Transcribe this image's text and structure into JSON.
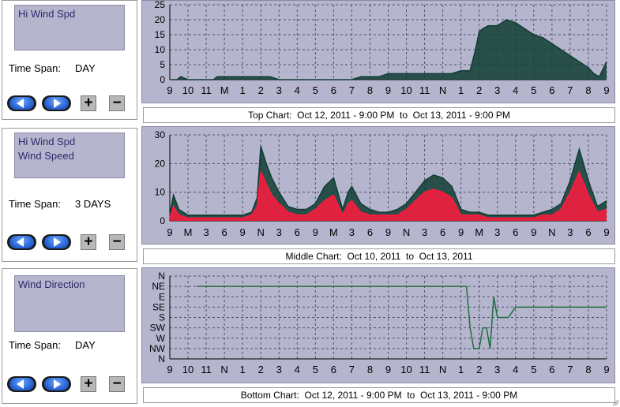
{
  "panels": [
    {
      "series": [
        "Hi Wind Spd"
      ],
      "time_span_label": "Time Span:",
      "time_span_value": "DAY",
      "zoom_in": "+",
      "zoom_out": "−",
      "caption": "Top Chart:  Oct 12, 2011 - 9:00 PM  to  Oct 13, 2011 - 9:00 PM"
    },
    {
      "series": [
        "Hi Wind Spd",
        "Wind Speed"
      ],
      "time_span_label": "Time Span:",
      "time_span_value": "3 DAYS",
      "zoom_in": "+",
      "zoom_out": "−",
      "caption": "Middle Chart:  Oct 10, 2011  to  Oct 13, 2011"
    },
    {
      "series": [
        "Wind Direction"
      ],
      "time_span_label": "Time Span:",
      "time_span_value": "DAY",
      "zoom_in": "+",
      "zoom_out": "−",
      "caption": "Bottom Chart:  Oct 12, 2011 - 9:00 PM  to  Oct 13, 2011 - 9:00 PM"
    }
  ],
  "colors": {
    "plot_bg": "#b6b5ce",
    "grid": "#52526e",
    "hi_wind": "#0f3d33",
    "wind_speed": "#ff1a3d",
    "direction": "#1e6e3c"
  },
  "icons": [
    "arrow-left-icon",
    "arrow-right-icon"
  ],
  "chart_data": [
    {
      "type": "area",
      "title": "",
      "xlabel": "",
      "ylabel": "",
      "ylim": [
        0,
        25
      ],
      "yticks": [
        "0",
        "5",
        "10",
        "15",
        "20",
        "25"
      ],
      "categories": [
        "9",
        "10",
        "11",
        "M",
        "1",
        "2",
        "3",
        "4",
        "5",
        "6",
        "7",
        "8",
        "9",
        "10",
        "11",
        "N",
        "1",
        "2",
        "3",
        "4",
        "5",
        "6",
        "7",
        "8",
        "9"
      ],
      "grid": true,
      "series": [
        {
          "name": "Hi Wind Spd",
          "x": [
            0,
            0.4,
            0.6,
            1,
            1.5,
            2,
            2.4,
            2.6,
            3,
            3.5,
            4,
            4.5,
            5,
            5.5,
            6,
            6.5,
            7,
            7.5,
            8,
            8.5,
            9,
            9.5,
            10,
            10.5,
            11,
            11.5,
            12,
            12.5,
            13,
            13.5,
            14,
            14.5,
            15,
            15.5,
            16,
            16.5,
            16.8,
            17,
            17.2,
            17.5,
            18,
            18.5,
            19,
            19.5,
            20,
            20.5,
            21,
            21.5,
            22,
            22.5,
            23,
            23.3,
            23.6,
            24
          ],
          "values": [
            0,
            0,
            1,
            0,
            0,
            0,
            0,
            1,
            1,
            1,
            1,
            1,
            1,
            1,
            0,
            0,
            0,
            0,
            0,
            0,
            0,
            0,
            0,
            1,
            1,
            1,
            2,
            2,
            2,
            2,
            2,
            2,
            2,
            2,
            3,
            3,
            10,
            16,
            17,
            18,
            18,
            20,
            19,
            17,
            15,
            14,
            12,
            10,
            8,
            6,
            4,
            2,
            1,
            6
          ]
        }
      ]
    },
    {
      "type": "area",
      "title": "",
      "xlabel": "",
      "ylabel": "",
      "ylim": [
        0,
        30
      ],
      "yticks": [
        "0",
        "10",
        "20",
        "30"
      ],
      "categories": [
        "9",
        "M",
        "3",
        "6",
        "9",
        "N",
        "3",
        "6",
        "9",
        "M",
        "3",
        "6",
        "9",
        "N",
        "3",
        "6",
        "9",
        "M",
        "3",
        "6",
        "9",
        "N",
        "3",
        "6",
        "9"
      ],
      "grid": true,
      "series": [
        {
          "name": "Hi Wind Spd",
          "x": [
            0,
            0.2,
            0.5,
            1,
            2,
            3,
            3.5,
            4,
            4.5,
            4.8,
            5,
            5.3,
            5.6,
            6,
            6.5,
            7,
            7.5,
            8,
            8.5,
            9,
            9.5,
            9.8,
            10,
            10.5,
            11,
            11.5,
            12,
            12.5,
            13,
            13.5,
            14,
            14.5,
            15,
            15.5,
            16,
            16.5,
            17,
            17.5,
            18,
            18.5,
            19,
            19.5,
            20,
            20.5,
            21,
            21.5,
            22,
            22.5,
            23,
            23.5,
            24
          ],
          "values": [
            2,
            9,
            4,
            2,
            2,
            2,
            2,
            2,
            3,
            8,
            26,
            20,
            15,
            10,
            5,
            4,
            4,
            6,
            12,
            15,
            4,
            10,
            12,
            6,
            4,
            3,
            3,
            4,
            6,
            10,
            14,
            16,
            15,
            12,
            4,
            3,
            3,
            2,
            2,
            2,
            2,
            2,
            2,
            3,
            4,
            6,
            14,
            25,
            14,
            5,
            7
          ]
        },
        {
          "name": "Wind Speed",
          "x": [
            0,
            0.2,
            0.5,
            1,
            2,
            3,
            3.5,
            4,
            4.5,
            4.8,
            5,
            5.3,
            5.6,
            6,
            6.5,
            7,
            7.5,
            8,
            8.5,
            9,
            9.5,
            9.8,
            10,
            10.5,
            11,
            11.5,
            12,
            12.5,
            13,
            13.5,
            14,
            14.5,
            15,
            15.5,
            16,
            16.5,
            17,
            17.5,
            18,
            18.5,
            19,
            19.5,
            20,
            20.5,
            21,
            21.5,
            22,
            22.5,
            23,
            23.5,
            24
          ],
          "values": [
            1,
            5,
            2,
            1,
            1,
            1,
            1,
            1,
            2,
            5,
            17,
            13,
            9,
            6,
            3,
            2,
            2,
            4,
            7,
            9,
            2,
            6,
            7,
            3,
            2,
            2,
            2,
            2,
            4,
            7,
            10,
            11,
            10,
            8,
            2,
            2,
            2,
            1,
            1,
            1,
            1,
            1,
            1,
            2,
            2,
            4,
            10,
            17,
            9,
            3,
            4
          ]
        }
      ]
    },
    {
      "type": "line",
      "title": "",
      "xlabel": "",
      "ylabel": "",
      "yticks": [
        "N",
        "NW",
        "W",
        "SW",
        "S",
        "SE",
        "E",
        "NE",
        "N"
      ],
      "categories": [
        "9",
        "10",
        "11",
        "N",
        "1",
        "2",
        "3",
        "4",
        "5",
        "6",
        "7",
        "8",
        "9",
        "10",
        "11",
        "N",
        "1",
        "2",
        "3",
        "4",
        "5",
        "6",
        "7",
        "8",
        "9"
      ],
      "grid": true,
      "series": [
        {
          "name": "Wind Direction",
          "x": [
            1.5,
            2.2,
            3,
            4,
            4.5,
            5,
            5.5,
            6,
            6.5,
            7,
            7.5,
            8,
            9,
            10,
            11,
            12,
            13,
            14,
            15,
            16,
            16.3,
            16.5,
            16.7,
            17,
            17.2,
            17.4,
            17.6,
            17.8,
            18,
            18.3,
            18.6,
            19,
            20,
            21,
            22,
            23,
            24
          ],
          "values": [
            7,
            7,
            7,
            7,
            7,
            7,
            7,
            7,
            7,
            7,
            7,
            7,
            7,
            7,
            7,
            7,
            7,
            7,
            7,
            7,
            7,
            3,
            1,
            1,
            3,
            3,
            1,
            6,
            4,
            4,
            4,
            5,
            5,
            5,
            5,
            5,
            5
          ]
        }
      ]
    }
  ]
}
